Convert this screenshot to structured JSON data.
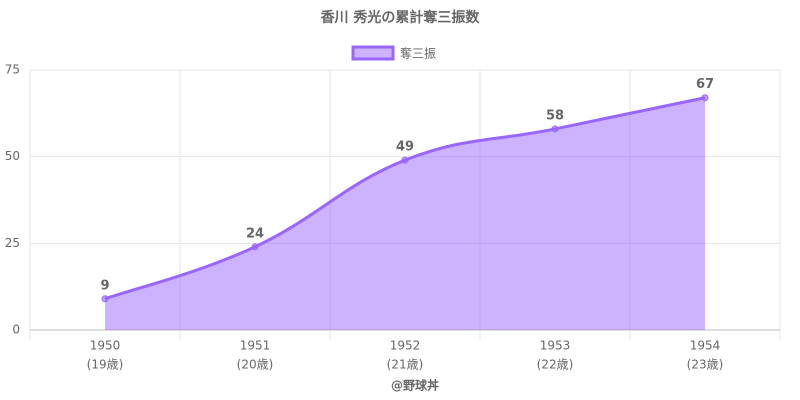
{
  "chart_data": {
    "type": "area",
    "title": "香川 秀光の累計奪三振数",
    "categories": [
      [
        "1950",
        "(19歳)"
      ],
      [
        "1951",
        "(20歳)"
      ],
      [
        "1952",
        "(21歳)"
      ],
      [
        "1953",
        "(22歳)"
      ],
      [
        "1954",
        "(23歳)"
      ]
    ],
    "series": [
      {
        "name": "奪三振",
        "color": "#9966ff",
        "values": [
          9,
          24,
          49,
          58,
          67
        ]
      }
    ],
    "x_label": "@野球丼",
    "ylim": [
      0,
      75
    ],
    "yticks": [
      0,
      25,
      50,
      75
    ],
    "grid": true,
    "legend": "top"
  }
}
